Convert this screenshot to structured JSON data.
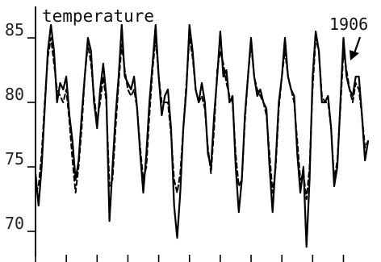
{
  "chart_data": {
    "type": "line",
    "title": "temperature",
    "xlabel": "",
    "ylabel": "",
    "ylim": [
      67,
      87
    ],
    "yticks": [
      85,
      80,
      75,
      70
    ],
    "ytick_labels": [
      "85",
      "80",
      "75",
      "70"
    ],
    "xlim": [
      1897.0,
      1907.8
    ],
    "xticks": [
      1897,
      1898,
      1899,
      1900,
      1901,
      1902,
      1903,
      1904,
      1905,
      1906,
      1907
    ],
    "grid": false,
    "annotation": {
      "text": "1906",
      "x": 1906.4,
      "y": 85.2
    },
    "series": [
      {
        "style": "solid",
        "color": "#000000",
        "x": [
          1897.0,
          1897.1,
          1897.2,
          1897.3,
          1897.4,
          1897.5,
          1897.6,
          1897.7,
          1897.8,
          1897.9,
          1898.0,
          1898.1,
          1898.2,
          1898.3,
          1898.4,
          1898.5,
          1898.6,
          1898.7,
          1898.8,
          1898.9,
          1899.0,
          1899.1,
          1899.2,
          1899.3,
          1899.4,
          1899.5,
          1899.6,
          1899.7,
          1899.8,
          1899.9,
          1900.0,
          1900.1,
          1900.2,
          1900.3,
          1900.4,
          1900.5,
          1900.6,
          1900.7,
          1900.8,
          1900.9,
          1901.0,
          1901.1,
          1901.2,
          1901.3,
          1901.4,
          1901.5,
          1901.6,
          1901.7,
          1901.8,
          1901.9,
          1902.0,
          1902.1,
          1902.2,
          1902.3,
          1902.4,
          1902.5,
          1902.6,
          1902.7,
          1902.8,
          1902.9,
          1903.0,
          1903.1,
          1903.2,
          1903.3,
          1903.4,
          1903.5,
          1903.6,
          1903.7,
          1903.8,
          1903.9,
          1904.0,
          1904.1,
          1904.2,
          1904.3,
          1904.4,
          1904.5,
          1904.6,
          1904.7,
          1904.8,
          1904.9,
          1905.0,
          1905.1,
          1905.2,
          1905.3,
          1905.4,
          1905.5,
          1905.6,
          1905.7,
          1905.8,
          1905.9,
          1906.0,
          1906.1,
          1906.2,
          1906.3,
          1906.4,
          1906.5,
          1906.6,
          1906.7,
          1906.8,
          1906.9,
          1907.0,
          1907.1,
          1907.2,
          1907.3,
          1907.4,
          1907.5,
          1907.6,
          1907.7,
          1907.8
        ],
        "y": [
          74.5,
          72.0,
          75.0,
          79.5,
          84.0,
          86.0,
          84.0,
          80.0,
          81.5,
          81.0,
          82.0,
          79.0,
          77.0,
          74.0,
          75.5,
          79.0,
          82.0,
          85.0,
          84.0,
          80.0,
          78.0,
          81.0,
          83.0,
          80.5,
          70.8,
          75.0,
          79.0,
          82.0,
          86.0,
          82.0,
          81.5,
          81.0,
          82.0,
          79.5,
          76.0,
          73.0,
          76.0,
          80.0,
          83.0,
          86.0,
          82.0,
          79.0,
          80.5,
          81.0,
          78.0,
          72.0,
          69.5,
          73.0,
          78.0,
          81.0,
          86.0,
          84.0,
          81.0,
          80.0,
          81.5,
          80.0,
          76.0,
          75.0,
          79.0,
          82.0,
          85.5,
          82.0,
          82.5,
          80.0,
          80.5,
          75.0,
          71.5,
          74.0,
          79.0,
          82.0,
          85.0,
          82.0,
          80.5,
          81.0,
          80.0,
          79.5,
          75.0,
          71.5,
          75.5,
          80.0,
          82.0,
          85.0,
          82.0,
          81.0,
          80.5,
          76.0,
          73.0,
          75.0,
          68.8,
          74.0,
          82.0,
          85.5,
          84.0,
          80.0,
          80.0,
          80.5,
          78.0,
          73.5,
          75.0,
          80.0,
          85.0,
          82.0,
          81.0,
          80.5,
          82.0,
          82.0,
          79.0,
          75.5,
          77.0
        ]
      },
      {
        "style": "dashed",
        "color": "#000000",
        "x": [
          1897.0,
          1897.1,
          1897.2,
          1897.3,
          1897.4,
          1897.5,
          1897.6,
          1897.7,
          1897.8,
          1897.9,
          1898.0,
          1898.1,
          1898.2,
          1898.3,
          1898.4,
          1898.5,
          1898.6,
          1898.7,
          1898.8,
          1898.9,
          1899.0,
          1899.1,
          1899.2,
          1899.3,
          1899.4,
          1899.5,
          1899.6,
          1899.7,
          1899.8,
          1899.9,
          1900.0,
          1900.1,
          1900.2,
          1900.3,
          1900.4,
          1900.5,
          1900.6,
          1900.7,
          1900.8,
          1900.9,
          1901.0,
          1901.1,
          1901.2,
          1901.3,
          1901.4,
          1901.5,
          1901.6,
          1901.7,
          1901.8,
          1901.9,
          1902.0,
          1902.1,
          1902.2,
          1902.3,
          1902.4,
          1902.5,
          1902.6,
          1902.7,
          1902.8,
          1902.9,
          1903.0,
          1903.1,
          1903.2,
          1903.3,
          1903.4,
          1903.5,
          1903.6,
          1903.7,
          1903.8,
          1903.9,
          1904.0,
          1904.1,
          1904.2,
          1904.3,
          1904.4,
          1904.5,
          1904.6,
          1904.7,
          1904.8,
          1904.9,
          1905.0,
          1905.1,
          1905.2,
          1905.3,
          1905.4,
          1905.5,
          1905.6,
          1905.7,
          1905.8,
          1905.9,
          1906.0,
          1906.1,
          1906.2,
          1906.3,
          1906.4,
          1906.5,
          1906.6,
          1906.7,
          1906.8,
          1906.9,
          1907.0,
          1907.1,
          1907.2,
          1907.3,
          1907.4,
          1907.5,
          1907.6,
          1907.7,
          1907.8
        ],
        "y": [
          73.0,
          73.5,
          76.0,
          80.0,
          83.5,
          85.0,
          83.0,
          81.0,
          80.5,
          80.0,
          81.0,
          78.5,
          75.5,
          73.0,
          75.0,
          78.0,
          82.0,
          84.5,
          83.0,
          80.5,
          78.5,
          80.0,
          82.0,
          80.0,
          73.5,
          74.0,
          78.0,
          81.5,
          84.5,
          82.5,
          81.0,
          80.5,
          81.0,
          79.5,
          76.5,
          74.0,
          75.0,
          79.0,
          82.5,
          85.0,
          82.0,
          80.0,
          80.0,
          80.0,
          77.5,
          74.0,
          73.0,
          74.5,
          78.0,
          81.5,
          85.0,
          83.5,
          81.0,
          80.0,
          80.5,
          79.5,
          76.5,
          74.5,
          78.0,
          82.5,
          84.0,
          83.0,
          81.5,
          80.5,
          80.0,
          76.0,
          73.5,
          74.0,
          78.5,
          82.0,
          84.5,
          82.0,
          81.0,
          80.5,
          80.0,
          79.0,
          76.0,
          73.0,
          75.0,
          79.5,
          82.0,
          84.0,
          82.0,
          81.0,
          80.0,
          77.0,
          74.0,
          74.5,
          72.5,
          75.0,
          81.0,
          85.0,
          84.0,
          80.5,
          80.0,
          80.0,
          78.0,
          74.0,
          75.5,
          79.5,
          84.0,
          82.5,
          81.0,
          80.0,
          81.5,
          81.0,
          79.0,
          76.5,
          77.0
        ]
      }
    ]
  }
}
